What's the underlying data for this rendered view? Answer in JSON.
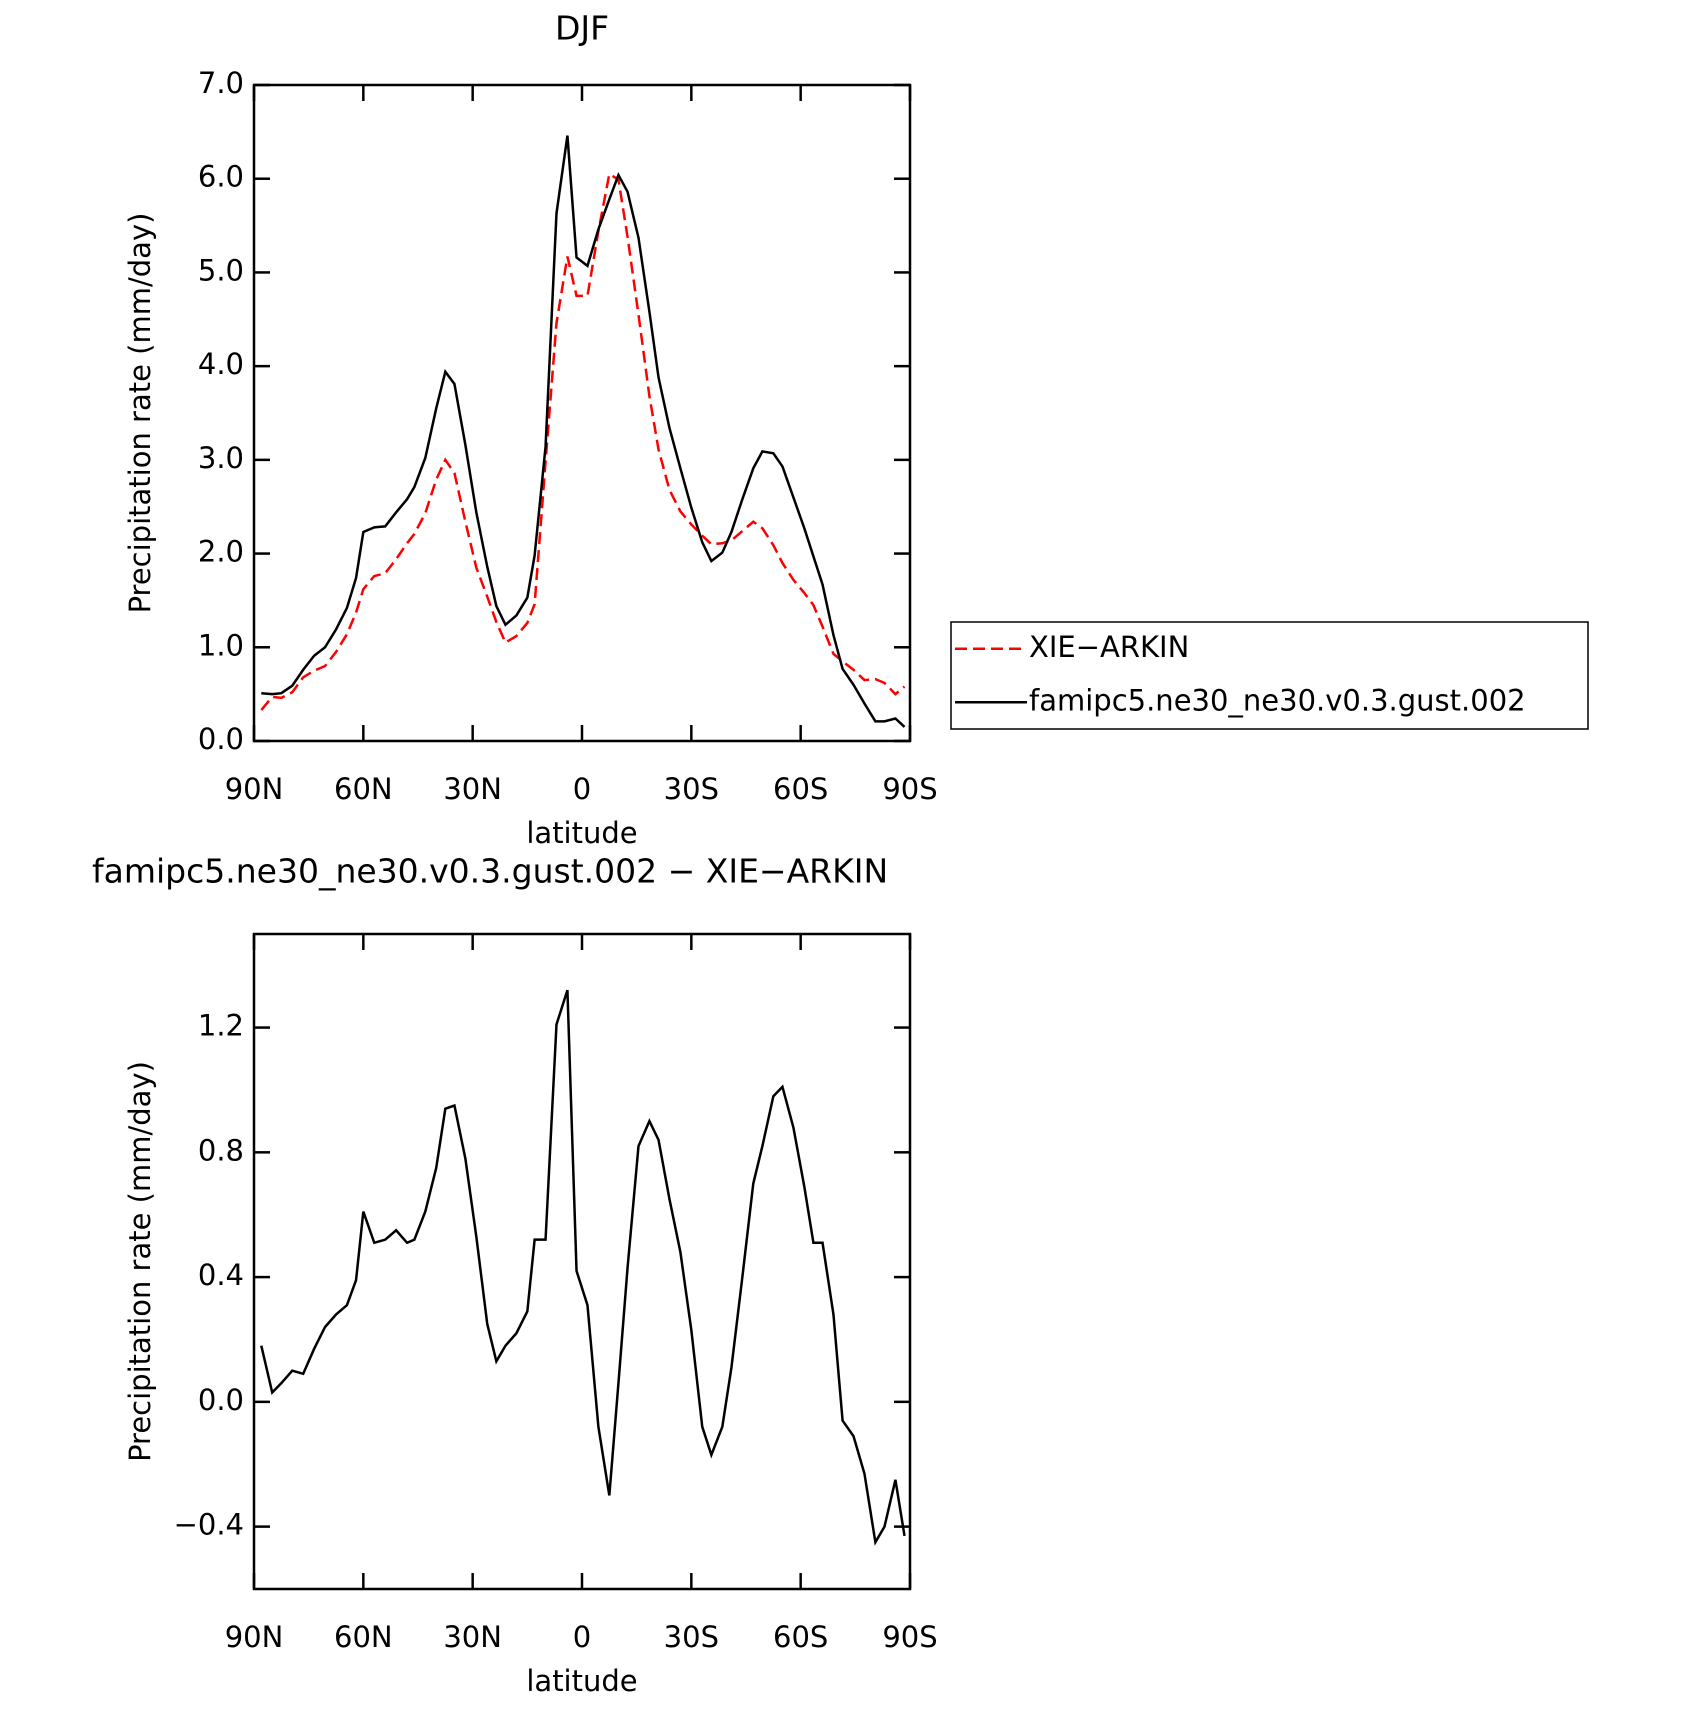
{
  "chart_data": [
    {
      "type": "line",
      "title": "DJF",
      "xlabel": "latitude",
      "ylabel": "Precipitation rate (mm/day)",
      "x": [
        88,
        85,
        82.5,
        79.5,
        76.5,
        73.5,
        70.5,
        67.5,
        64.5,
        62,
        60,
        57,
        54,
        51,
        48,
        46,
        43,
        40,
        37.5,
        35,
        32,
        29,
        26,
        23.5,
        21,
        18,
        15,
        13,
        10,
        7,
        4,
        1.5,
        -1.5,
        -4.5,
        -7.5,
        -10,
        -12.5,
        -15.5,
        -18.5,
        -21,
        -24,
        -27,
        -30,
        -33,
        -35.5,
        -38.5,
        -41,
        -44,
        -47,
        -49.5,
        -52.5,
        -55,
        -58,
        -61,
        -63.5,
        -66,
        -69,
        -71.5,
        -74.5,
        -77.5,
        -80.5,
        -83,
        -86,
        -88.5
      ],
      "series": [
        {
          "name": "XIE−ARKIN",
          "color": "#ff0000",
          "line_style": "dashed",
          "values": [
            0.33,
            0.47,
            0.46,
            0.52,
            0.68,
            0.75,
            0.8,
            0.95,
            1.14,
            1.37,
            1.62,
            1.76,
            1.79,
            1.94,
            2.11,
            2.21,
            2.43,
            2.79,
            3.0,
            2.86,
            2.34,
            1.85,
            1.54,
            1.27,
            1.05,
            1.12,
            1.26,
            1.46,
            2.98,
            4.46,
            5.17,
            4.75,
            4.75,
            5.44,
            6.05,
            5.99,
            5.38,
            4.55,
            3.68,
            3.11,
            2.68,
            2.45,
            2.31,
            2.19,
            2.1,
            2.11,
            2.14,
            2.24,
            2.34,
            2.27,
            2.09,
            1.9,
            1.72,
            1.58,
            1.45,
            1.22,
            0.93,
            0.85,
            0.76,
            0.65,
            0.66,
            0.62,
            0.5,
            0.58
          ]
        },
        {
          "name": "famipc5.ne30_ne30.v0.3.gust.002",
          "color": "#000000",
          "line_style": "solid",
          "values": [
            0.51,
            0.5,
            0.51,
            0.59,
            0.76,
            0.91,
            1.0,
            1.19,
            1.42,
            1.74,
            2.23,
            2.28,
            2.29,
            2.44,
            2.58,
            2.71,
            3.02,
            3.55,
            3.94,
            3.81,
            3.16,
            2.44,
            1.86,
            1.44,
            1.24,
            1.34,
            1.53,
            1.98,
            3.14,
            5.63,
            6.46,
            5.16,
            5.07,
            5.46,
            5.78,
            6.04,
            5.86,
            5.37,
            4.58,
            3.88,
            3.34,
            2.91,
            2.49,
            2.12,
            1.92,
            2.01,
            2.23,
            2.58,
            2.91,
            3.09,
            3.07,
            2.93,
            2.6,
            2.27,
            1.97,
            1.67,
            1.13,
            0.77,
            0.6,
            0.4,
            0.21,
            0.21,
            0.24,
            0.15
          ]
        }
      ],
      "xlim": [
        90,
        -90
      ],
      "xticks": [
        {
          "value": 90,
          "label": "90N"
        },
        {
          "value": 60,
          "label": "60N"
        },
        {
          "value": 30,
          "label": "30N"
        },
        0,
        {
          "value": -30,
          "label": "30S"
        },
        {
          "value": -60,
          "label": "60S"
        },
        {
          "value": -90,
          "label": "90S"
        }
      ],
      "ylim": [
        0,
        7
      ],
      "yticks": [
        {
          "value": 0,
          "label": "0.0"
        },
        {
          "value": 1,
          "label": "1.0"
        },
        {
          "value": 2,
          "label": "2.0"
        },
        {
          "value": 3,
          "label": "3.0"
        },
        {
          "value": 4,
          "label": "4.0"
        },
        {
          "value": 5,
          "label": "5.0"
        },
        {
          "value": 6,
          "label": "6.0"
        },
        {
          "value": 7,
          "label": "7.0"
        }
      ],
      "legend": "right"
    },
    {
      "type": "line",
      "title": "famipc5.ne30_ne30.v0.3.gust.002 − XIE−ARKIN",
      "xlabel": "latitude",
      "ylabel": "Precipitation rate (mm/day)",
      "x": [
        88,
        85,
        82.5,
        79.5,
        76.5,
        73.5,
        70.5,
        67.5,
        64.5,
        62,
        60,
        57,
        54,
        51,
        48,
        46,
        43,
        40,
        37.5,
        35,
        32,
        29,
        26,
        23.5,
        21,
        18,
        15,
        13,
        10,
        7,
        4,
        1.5,
        -1.5,
        -4.5,
        -7.5,
        -10,
        -12.5,
        -15.5,
        -18.5,
        -21,
        -24,
        -27,
        -30,
        -33,
        -35.5,
        -38.5,
        -41,
        -44,
        -47,
        -49.5,
        -52.5,
        -55,
        -58,
        -61,
        -63.5,
        -66,
        -69,
        -71.5,
        -74.5,
        -77.5,
        -80.5,
        -83,
        -86,
        -88.5
      ],
      "series": [
        {
          "color": "#000000",
          "line_style": "solid",
          "values": [
            0.18,
            0.03,
            0.06,
            0.1,
            0.09,
            0.17,
            0.24,
            0.28,
            0.31,
            0.39,
            0.61,
            0.51,
            0.52,
            0.55,
            0.51,
            0.52,
            0.61,
            0.75,
            0.94,
            0.95,
            0.78,
            0.53,
            0.25,
            0.13,
            0.18,
            0.22,
            0.29,
            0.52,
            0.52,
            1.21,
            1.32,
            0.42,
            0.31,
            -0.08,
            -0.3,
            0.06,
            0.43,
            0.82,
            0.9,
            0.84,
            0.65,
            0.48,
            0.23,
            -0.08,
            -0.17,
            -0.08,
            0.11,
            0.4,
            0.7,
            0.82,
            0.98,
            1.01,
            0.88,
            0.69,
            0.51,
            0.51,
            0.28,
            -0.06,
            -0.11,
            -0.23,
            -0.45,
            -0.4,
            -0.25,
            -0.43
          ]
        }
      ],
      "xlim": [
        90,
        -90
      ],
      "xticks": [
        {
          "value": 90,
          "label": "90N"
        },
        {
          "value": 60,
          "label": "60N"
        },
        {
          "value": 30,
          "label": "30N"
        },
        0,
        {
          "value": -30,
          "label": "30S"
        },
        {
          "value": -60,
          "label": "60S"
        },
        {
          "value": -90,
          "label": "90S"
        }
      ],
      "ylim": [
        -0.6,
        1.5
      ],
      "yticks": [
        {
          "value": -0.4,
          "label": "−0.4"
        },
        {
          "value": 0,
          "label": "0.0"
        },
        0.4,
        0.8,
        1.2
      ]
    }
  ]
}
